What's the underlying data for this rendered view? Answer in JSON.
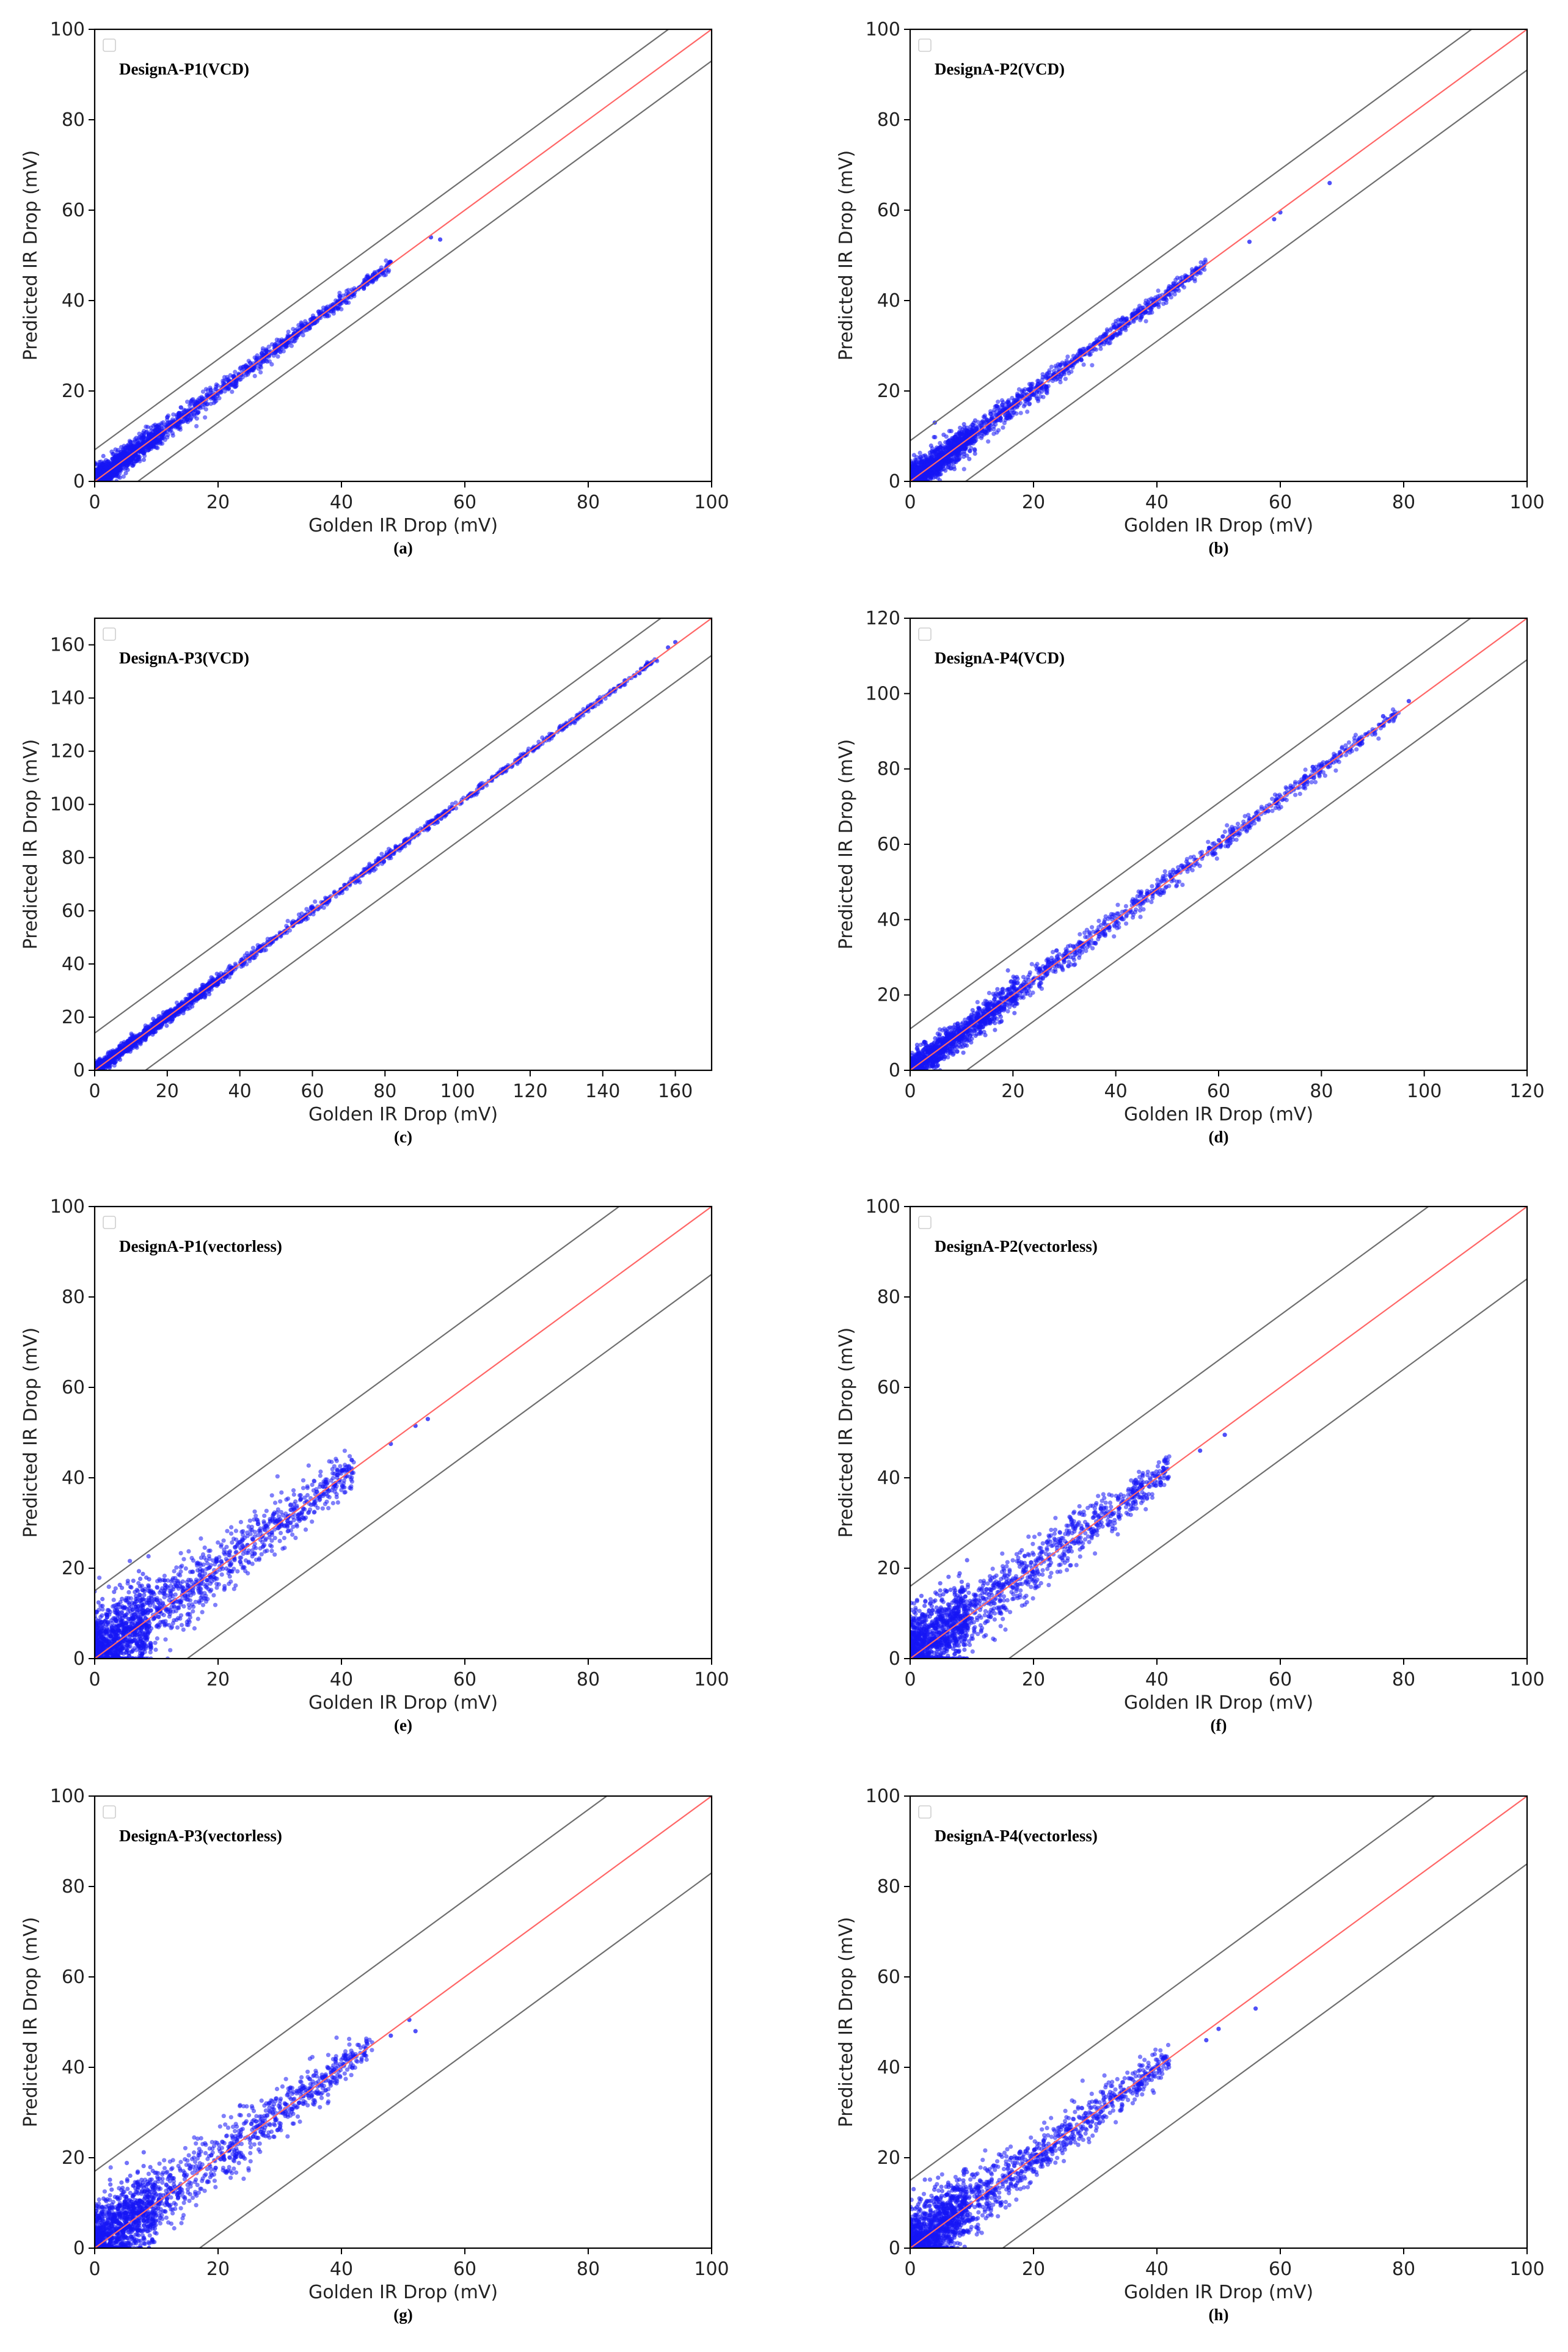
{
  "figure": {
    "x_axis_label": "Golden IR Drop (mV)",
    "y_axis_label": "Predicted IR Drop (mV)",
    "colors": {
      "points": "#1515f5",
      "ideal_line": "#ff6666",
      "bound_lines": "#6e6e6e",
      "axes": "#000000"
    }
  },
  "chart_data": [
    {
      "type": "scatter",
      "title": "DesignA-P1(VCD)",
      "caption": "(a)",
      "xlabel": "Golden IR Drop (mV)",
      "ylabel": "Predicted IR Drop (mV)",
      "xlim": [
        0,
        100
      ],
      "ylim": [
        0,
        100
      ],
      "xticks": [
        0,
        20,
        40,
        60,
        80,
        100
      ],
      "yticks": [
        0,
        20,
        40,
        60,
        80,
        100
      ],
      "bound_offset": 7,
      "spread": 0.9,
      "density_max": 48,
      "outliers": [
        [
          54.5,
          54
        ],
        [
          56,
          53.5
        ],
        [
          48,
          48.5
        ]
      ],
      "legend": "empty box, top-left"
    },
    {
      "type": "scatter",
      "title": "DesignA-P2(VCD)",
      "caption": "(b)",
      "xlabel": "Golden IR Drop (mV)",
      "ylabel": "Predicted IR Drop (mV)",
      "xlim": [
        0,
        100
      ],
      "ylim": [
        0,
        100
      ],
      "xticks": [
        0,
        20,
        40,
        60,
        80,
        100
      ],
      "yticks": [
        0,
        20,
        40,
        60,
        80,
        100
      ],
      "bound_offset": 9,
      "spread": 1.1,
      "density_max": 48,
      "outliers": [
        [
          59,
          58
        ],
        [
          60,
          59.5
        ],
        [
          68,
          66
        ],
        [
          55,
          53
        ],
        [
          4,
          13
        ]
      ],
      "legend": "empty box, top-left"
    },
    {
      "type": "scatter",
      "title": "DesignA-P3(VCD)",
      "caption": "(c)",
      "xlabel": "Golden IR Drop (mV)",
      "ylabel": "Predicted IR Drop (mV)",
      "xlim": [
        0,
        170
      ],
      "ylim": [
        0,
        170
      ],
      "xticks": [
        0,
        20,
        40,
        60,
        80,
        100,
        120,
        140,
        160
      ],
      "yticks": [
        0,
        20,
        40,
        60,
        80,
        100,
        120,
        140,
        160
      ],
      "bound_offset": 14,
      "spread": 0.8,
      "density_max": 155,
      "outliers": [
        [
          160,
          161
        ],
        [
          158,
          159
        ]
      ],
      "legend": "empty box, top-left"
    },
    {
      "type": "scatter",
      "title": "DesignA-P4(VCD)",
      "caption": "(d)",
      "xlabel": "Golden IR Drop (mV)",
      "ylabel": "Predicted IR Drop (mV)",
      "xlim": [
        0,
        120
      ],
      "ylim": [
        0,
        120
      ],
      "xticks": [
        0,
        20,
        40,
        60,
        80,
        100,
        120
      ],
      "yticks": [
        0,
        20,
        40,
        60,
        80,
        100,
        120
      ],
      "bound_offset": 11,
      "spread": 1.3,
      "density_max": 95,
      "outliers": [
        [
          97,
          98
        ],
        [
          92,
          94
        ]
      ],
      "legend": "empty box, top-left"
    },
    {
      "type": "scatter",
      "title": "DesignA-P1(vectorless)",
      "caption": "(e)",
      "xlabel": "Golden IR Drop (mV)",
      "ylabel": "Predicted IR Drop (mV)",
      "xlim": [
        0,
        100
      ],
      "ylim": [
        0,
        100
      ],
      "xticks": [
        0,
        20,
        40,
        60,
        80,
        100
      ],
      "yticks": [
        0,
        20,
        40,
        60,
        80,
        100
      ],
      "bound_offset": 15,
      "spread": 3.2,
      "density_max": 42,
      "outliers": [
        [
          48,
          47.5
        ],
        [
          54,
          53
        ],
        [
          52,
          51.5
        ]
      ],
      "legend": "empty box, top-left"
    },
    {
      "type": "scatter",
      "title": "DesignA-P2(vectorless)",
      "caption": "(f)",
      "xlabel": "Golden IR Drop (mV)",
      "ylabel": "Predicted IR Drop (mV)",
      "xlim": [
        0,
        100
      ],
      "ylim": [
        0,
        100
      ],
      "xticks": [
        0,
        20,
        40,
        60,
        80,
        100
      ],
      "yticks": [
        0,
        20,
        40,
        60,
        80,
        100
      ],
      "bound_offset": 16,
      "spread": 2.8,
      "density_max": 42,
      "outliers": [
        [
          51,
          49.5
        ],
        [
          47,
          46
        ]
      ],
      "legend": "empty box, top-left"
    },
    {
      "type": "scatter",
      "title": "DesignA-P3(vectorless)",
      "caption": "(g)",
      "xlabel": "Golden IR Drop (mV)",
      "ylabel": "Predicted IR Drop (mV)",
      "xlim": [
        0,
        100
      ],
      "ylim": [
        0,
        100
      ],
      "xticks": [
        0,
        20,
        40,
        60,
        80,
        100
      ],
      "yticks": [
        0,
        20,
        40,
        60,
        80,
        100
      ],
      "bound_offset": 17,
      "spread": 3.0,
      "density_max": 45,
      "outliers": [
        [
          51,
          50.5
        ],
        [
          48,
          47
        ],
        [
          52,
          48
        ]
      ],
      "legend": "empty box, top-left"
    },
    {
      "type": "scatter",
      "title": "DesignA-P4(vectorless)",
      "caption": "(h)",
      "xlabel": "Golden IR Drop (mV)",
      "ylabel": "Predicted IR Drop (mV)",
      "xlim": [
        0,
        100
      ],
      "ylim": [
        0,
        100
      ],
      "xticks": [
        0,
        20,
        40,
        60,
        80,
        100
      ],
      "yticks": [
        0,
        20,
        40,
        60,
        80,
        100
      ],
      "bound_offset": 15,
      "spread": 2.7,
      "density_max": 42,
      "outliers": [
        [
          56,
          53
        ],
        [
          50,
          48.5
        ],
        [
          48,
          46
        ]
      ],
      "legend": "empty box, top-left"
    }
  ]
}
